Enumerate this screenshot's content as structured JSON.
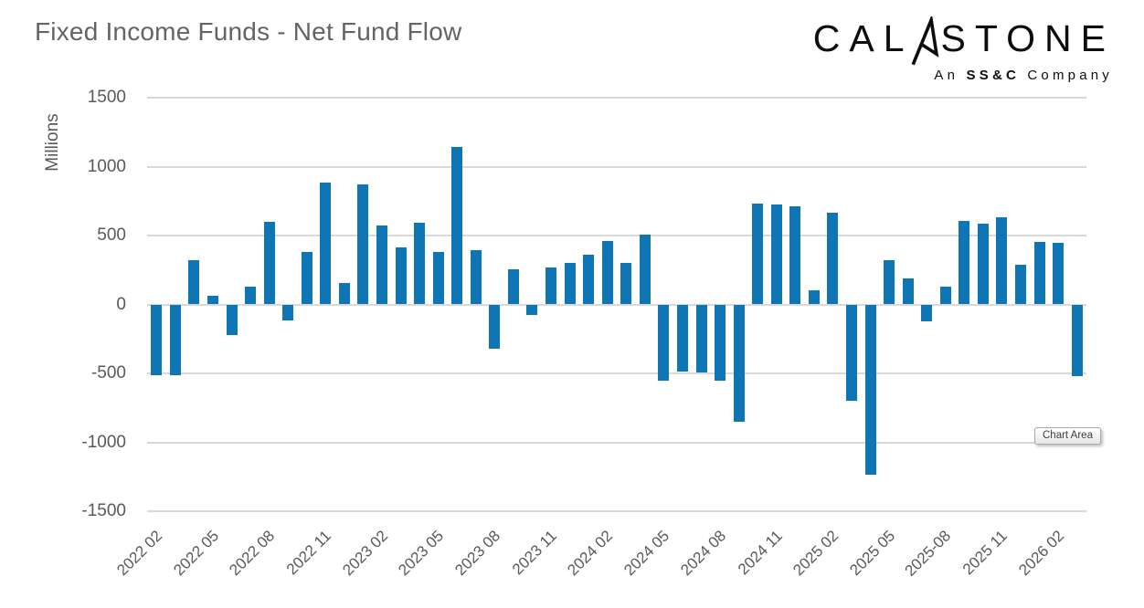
{
  "header": {
    "title": "Fixed Income Funds - Net Fund Flow"
  },
  "logo": {
    "brand_left": "CAL",
    "brand_right": "STONE",
    "glyph": "calastone-a-mark",
    "subtitle_prefix": "An ",
    "subtitle_bold": "SS&C",
    "subtitle_suffix": " Company"
  },
  "tooltip": {
    "label": "Chart Area"
  },
  "chart_data": {
    "type": "bar",
    "title": "Fixed Income Funds - Net Fund Flow",
    "xlabel": "",
    "ylabel": "Millions",
    "ylim": [
      -1500,
      1500
    ],
    "yticks": [
      1500,
      1000,
      500,
      0,
      -500,
      -1000,
      -1500
    ],
    "grid": "horizontal",
    "gridline_color": "#d9d9d9",
    "legend": "none",
    "bar_color": "#0e76b4",
    "x_label_rotation_deg": 45,
    "categories": [
      "2022 02",
      "2022 03",
      "2022 04",
      "2022 05",
      "2022 06",
      "2022 07",
      "2022 08",
      "2022 09",
      "2022 10",
      "2022 11",
      "2022 12",
      "2023 01",
      "2023 02",
      "2023 03",
      "2023 04",
      "2023 05",
      "2023 06",
      "2023 07",
      "2023 08",
      "2023 09",
      "2023 10",
      "2023 11",
      "2023 12",
      "2024 01",
      "2024 02",
      "2024 03",
      "2024 04",
      "2024 05",
      "2024 06",
      "2024 07",
      "2024 08",
      "2024 09",
      "2024 10",
      "2024 11",
      "2024 12",
      "2025 01",
      "2025 02",
      "2025 03",
      "2025 04",
      "2025 05",
      "2025 06",
      "2025 07",
      "2025 08",
      "2025 09",
      "2025 10",
      "2025 11",
      "2025 12",
      "2026 01",
      "2026 02",
      "2026 03"
    ],
    "values": [
      -515,
      -515,
      320,
      65,
      -220,
      130,
      600,
      -115,
      380,
      885,
      155,
      870,
      570,
      415,
      590,
      380,
      1140,
      395,
      -320,
      255,
      -75,
      270,
      300,
      360,
      460,
      300,
      505,
      -550,
      -490,
      -495,
      -550,
      -850,
      730,
      725,
      710,
      105,
      665,
      -700,
      -1235,
      320,
      190,
      -120,
      130,
      605,
      585,
      635,
      290,
      455,
      450,
      -520
    ],
    "xticks": [
      {
        "index": 0,
        "label": "2022 02"
      },
      {
        "index": 3,
        "label": "2022 05"
      },
      {
        "index": 6,
        "label": "2022 08"
      },
      {
        "index": 9,
        "label": "2022 11"
      },
      {
        "index": 12,
        "label": "2023 02"
      },
      {
        "index": 15,
        "label": "2023 05"
      },
      {
        "index": 18,
        "label": "2023 08"
      },
      {
        "index": 21,
        "label": "2023 11"
      },
      {
        "index": 24,
        "label": "2024 02"
      },
      {
        "index": 27,
        "label": "2024 05"
      },
      {
        "index": 30,
        "label": "2024 08"
      },
      {
        "index": 33,
        "label": "2024 11"
      },
      {
        "index": 36,
        "label": "2025 02"
      },
      {
        "index": 39,
        "label": "2025 05"
      },
      {
        "index": 42,
        "label": "2025-08"
      },
      {
        "index": 45,
        "label": "2025 11"
      },
      {
        "index": 48,
        "label": "2026 02"
      }
    ]
  }
}
